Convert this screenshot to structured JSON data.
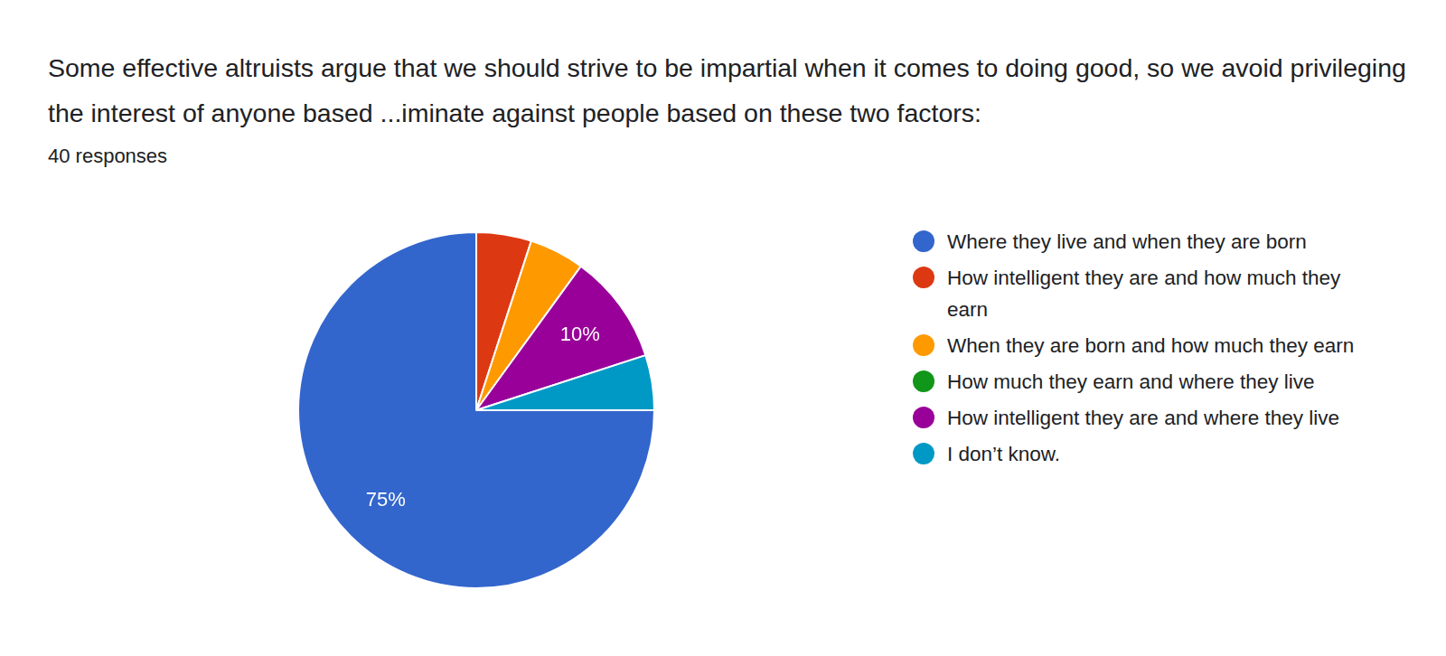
{
  "chart_data": {
    "type": "pie",
    "title": "Some effective altruists argue that we should strive to be impartial when it comes to doing good, so we avoid privileging the interest of anyone based ...iminate against people based on these two factors:",
    "subtitle": "40 responses",
    "categories": [
      "Where they live and when they are born",
      "How intelligent they are and how much they earn",
      "When they are born and how much they earn",
      "How much they earn and where they live",
      "How intelligent they are and where they live",
      "I don’t know."
    ],
    "values": [
      75,
      5,
      5,
      0,
      10,
      5
    ],
    "value_labels": [
      "75%",
      null,
      null,
      null,
      "10%",
      null
    ],
    "colors": [
      "#3366cc",
      "#dc3912",
      "#ff9900",
      "#109618",
      "#990099",
      "#0099c6"
    ],
    "legend": "right",
    "data_labels": true
  }
}
